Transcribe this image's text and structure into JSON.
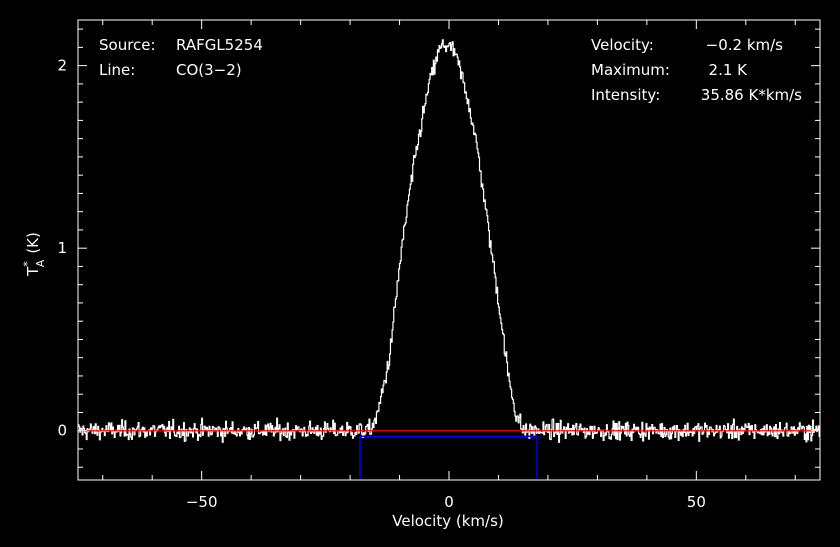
{
  "chart_data": {
    "type": "line",
    "title": "",
    "xlabel": "Velocity (km/s)",
    "ylabel_main": "T",
    "ylabel_sup": "*",
    "ylabel_sub": "A",
    "ylabel_unit": "(K)",
    "xlim": [
      -75,
      75
    ],
    "ylim": [
      -0.27,
      2.25
    ],
    "x_ticks": [
      -50,
      0,
      50
    ],
    "x_tick_labels": [
      "−50",
      "0",
      "50"
    ],
    "y_ticks": [
      0,
      1,
      2
    ],
    "y_tick_labels": [
      "0",
      "1",
      "2"
    ],
    "grid": false,
    "colors": {
      "background": "#000000",
      "axes": "#ffffff",
      "spectrum": "#ffffff",
      "baseline": "#ff0000",
      "window": "#0000ff"
    },
    "annotations": {
      "source_label": "Source:",
      "source_value": "RAFGL5254",
      "line_label": "Line:",
      "line_value": "CO(3−2)",
      "velocity_label": "Velocity:",
      "velocity_value": "−0.2 km/s",
      "maximum_label": "Maximum:",
      "maximum_value": "2.1 K",
      "intensity_label": "Intensity:",
      "intensity_value": "35.86 K*km/s"
    },
    "baseline_value": 0,
    "integration_window": {
      "x_start": -18,
      "x_end": 17.8,
      "y_level": -0.03,
      "y_bottom": -0.26
    },
    "series": [
      {
        "profile": {
          "x": [
            -75,
            -16,
            -14.5,
            -12,
            -10,
            -8,
            -6,
            -4,
            -2,
            -1,
            0,
            1,
            2,
            4,
            6,
            8,
            10,
            12,
            13.5,
            15,
            75
          ],
          "y": [
            0,
            0,
            0.08,
            0.4,
            0.9,
            1.3,
            1.62,
            1.9,
            2.08,
            2.12,
            2.1,
            2.08,
            2.0,
            1.8,
            1.5,
            1.1,
            0.72,
            0.3,
            0.1,
            0,
            0
          ]
        },
        "noise_rms": 0.035,
        "n_channels": 900
      }
    ]
  }
}
